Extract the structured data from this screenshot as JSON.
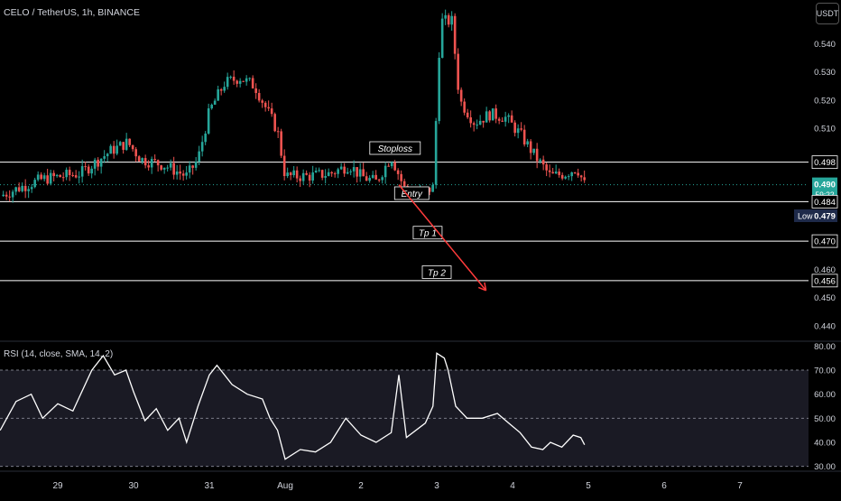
{
  "header": {
    "symbol_title": "CELO / TetherUS, 1h, BINANCE",
    "currency_button": "USDT"
  },
  "rsi_panel": {
    "title": "RSI (14, close, SMA, 14, 2)"
  },
  "colors": {
    "background": "#000000",
    "up_candle": "#26a69a",
    "down_candle": "#ef5350",
    "horizontal_line": "#ffffff",
    "arrow": "#ff3b3b",
    "rsi_line": "#ffffff",
    "rsi_band": "#1a1a24",
    "axis_text": "#d1d4dc"
  },
  "chart_data": [
    {
      "type": "candlestick",
      "title": "CELO / TetherUS, 1h, BINANCE",
      "y_axis_ticks": [
        "0.540",
        "0.530",
        "0.520",
        "0.510",
        "0.460",
        "0.450",
        "0.440"
      ],
      "ylim": [
        0.4345,
        0.5555
      ],
      "x_ticks": [
        "29",
        "30",
        "31",
        "Aug",
        "2",
        "3",
        "4",
        "5",
        "6",
        "7"
      ],
      "price_labels": [
        {
          "price": 0.498,
          "label": "0.498",
          "style": "outline"
        },
        {
          "price": 0.49,
          "label": "0.490",
          "sublabel": "59:22",
          "style": "current"
        },
        {
          "price": 0.484,
          "label": "0.484",
          "style": "outline"
        },
        {
          "price": 0.479,
          "label": "0.479",
          "prefix": "Low",
          "style": "low"
        },
        {
          "price": 0.47,
          "label": "0.470",
          "style": "outline"
        },
        {
          "price": 0.456,
          "label": "0.456",
          "style": "outline"
        }
      ],
      "horizontal_levels": [
        0.498,
        0.484,
        0.47,
        0.456
      ],
      "annotations": [
        {
          "text": "Stoploss",
          "price": 0.503,
          "day": 4.45
        },
        {
          "text": "Entry",
          "price": 0.487,
          "day": 4.67
        },
        {
          "text": "Tp 1",
          "price": 0.473,
          "day": 4.88
        },
        {
          "text": "Tp 2",
          "price": 0.459,
          "day": 5.0
        }
      ],
      "arrow": {
        "from": {
          "day": 4.5,
          "price": 0.49
        },
        "to": {
          "day": 5.65,
          "price": 0.4525
        }
      },
      "ohlc_anchors": [
        {
          "day": -0.76,
          "price": 0.486
        },
        {
          "day": -0.5,
          "price": 0.489
        },
        {
          "day": -0.2,
          "price": 0.492
        },
        {
          "day": 0.3,
          "price": 0.494
        },
        {
          "day": 0.7,
          "price": 0.502
        },
        {
          "day": 0.92,
          "price": 0.505
        },
        {
          "day": 1.1,
          "price": 0.499
        },
        {
          "day": 1.4,
          "price": 0.497
        },
        {
          "day": 1.7,
          "price": 0.493
        },
        {
          "day": 1.85,
          "price": 0.499
        },
        {
          "day": 2.0,
          "price": 0.516
        },
        {
          "day": 2.2,
          "price": 0.526
        },
        {
          "day": 2.4,
          "price": 0.528
        },
        {
          "day": 2.6,
          "price": 0.525
        },
        {
          "day": 2.9,
          "price": 0.509
        },
        {
          "day": 3.0,
          "price": 0.493
        },
        {
          "day": 3.3,
          "price": 0.493
        },
        {
          "day": 3.6,
          "price": 0.494
        },
        {
          "day": 3.85,
          "price": 0.497
        },
        {
          "day": 4.0,
          "price": 0.493
        },
        {
          "day": 4.2,
          "price": 0.491
        },
        {
          "day": 4.4,
          "price": 0.5
        },
        {
          "day": 4.6,
          "price": 0.487
        },
        {
          "day": 4.8,
          "price": 0.487
        },
        {
          "day": 4.95,
          "price": 0.489
        },
        {
          "day": 5.05,
          "price": 0.548
        },
        {
          "day": 5.2,
          "price": 0.548
        },
        {
          "day": 5.3,
          "price": 0.52
        },
        {
          "day": 5.5,
          "price": 0.512
        },
        {
          "day": 5.7,
          "price": 0.515
        },
        {
          "day": 5.9,
          "price": 0.514
        },
        {
          "day": 6.1,
          "price": 0.508
        },
        {
          "day": 6.3,
          "price": 0.5
        },
        {
          "day": 6.5,
          "price": 0.493
        },
        {
          "day": 6.7,
          "price": 0.494
        },
        {
          "day": 6.85,
          "price": 0.496
        },
        {
          "day": 6.95,
          "price": 0.49
        }
      ]
    },
    {
      "type": "line",
      "title": "RSI (14, close, SMA, 14, 2)",
      "y_axis_ticks": [
        "80.00",
        "70.00",
        "60.00",
        "50.00",
        "40.00",
        "30.00"
      ],
      "ylim": [
        28,
        82
      ],
      "band": [
        30,
        70
      ],
      "series": [
        {
          "values": [
            {
              "day": -0.76,
              "rsi": 45
            },
            {
              "day": -0.55,
              "rsi": 57
            },
            {
              "day": -0.35,
              "rsi": 60
            },
            {
              "day": -0.2,
              "rsi": 50
            },
            {
              "day": 0.0,
              "rsi": 56
            },
            {
              "day": 0.2,
              "rsi": 53
            },
            {
              "day": 0.45,
              "rsi": 70
            },
            {
              "day": 0.6,
              "rsi": 76
            },
            {
              "day": 0.75,
              "rsi": 68
            },
            {
              "day": 0.9,
              "rsi": 70
            },
            {
              "day": 1.0,
              "rsi": 61
            },
            {
              "day": 1.15,
              "rsi": 49
            },
            {
              "day": 1.3,
              "rsi": 54
            },
            {
              "day": 1.45,
              "rsi": 45
            },
            {
              "day": 1.6,
              "rsi": 50
            },
            {
              "day": 1.7,
              "rsi": 40
            },
            {
              "day": 1.85,
              "rsi": 55
            },
            {
              "day": 2.0,
              "rsi": 68
            },
            {
              "day": 2.1,
              "rsi": 72
            },
            {
              "day": 2.3,
              "rsi": 64
            },
            {
              "day": 2.5,
              "rsi": 60
            },
            {
              "day": 2.7,
              "rsi": 58
            },
            {
              "day": 2.8,
              "rsi": 50
            },
            {
              "day": 2.9,
              "rsi": 45
            },
            {
              "day": 3.0,
              "rsi": 33
            },
            {
              "day": 3.2,
              "rsi": 37
            },
            {
              "day": 3.4,
              "rsi": 36
            },
            {
              "day": 3.6,
              "rsi": 40
            },
            {
              "day": 3.8,
              "rsi": 50
            },
            {
              "day": 4.0,
              "rsi": 43
            },
            {
              "day": 4.2,
              "rsi": 40
            },
            {
              "day": 4.4,
              "rsi": 44
            },
            {
              "day": 4.5,
              "rsi": 68
            },
            {
              "day": 4.6,
              "rsi": 42
            },
            {
              "day": 4.85,
              "rsi": 48
            },
            {
              "day": 4.95,
              "rsi": 55
            },
            {
              "day": 5.0,
              "rsi": 77
            },
            {
              "day": 5.1,
              "rsi": 75
            },
            {
              "day": 5.15,
              "rsi": 70
            },
            {
              "day": 5.25,
              "rsi": 55
            },
            {
              "day": 5.4,
              "rsi": 50
            },
            {
              "day": 5.6,
              "rsi": 50
            },
            {
              "day": 5.8,
              "rsi": 52
            },
            {
              "day": 5.95,
              "rsi": 48
            },
            {
              "day": 6.1,
              "rsi": 44
            },
            {
              "day": 6.25,
              "rsi": 38
            },
            {
              "day": 6.4,
              "rsi": 37
            },
            {
              "day": 6.5,
              "rsi": 40
            },
            {
              "day": 6.65,
              "rsi": 38
            },
            {
              "day": 6.8,
              "rsi": 43
            },
            {
              "day": 6.9,
              "rsi": 42
            },
            {
              "day": 6.95,
              "rsi": 39
            }
          ]
        }
      ]
    }
  ]
}
